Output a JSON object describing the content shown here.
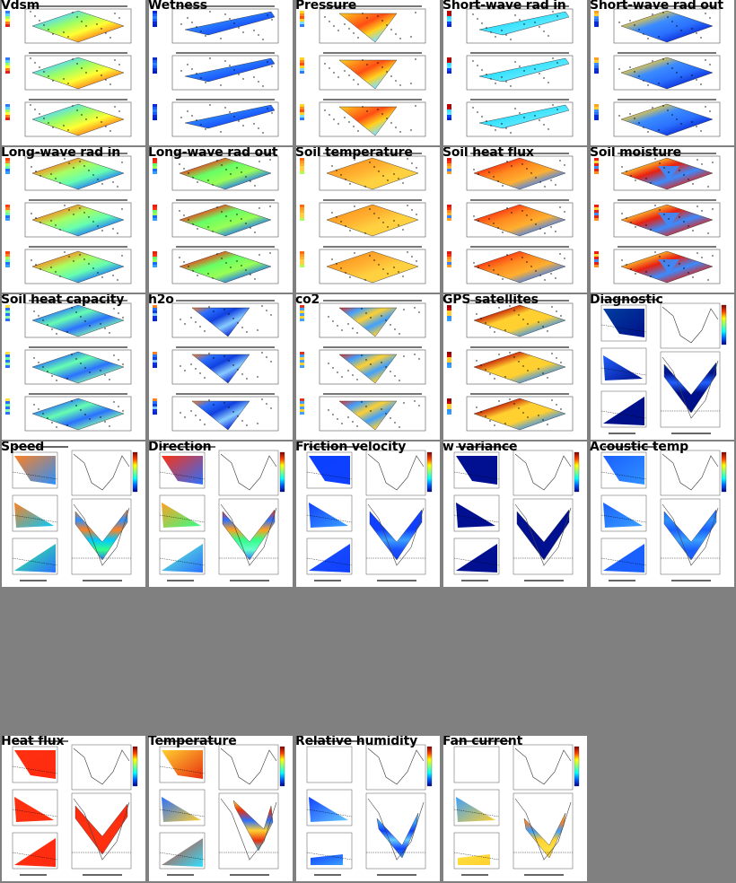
{
  "tiles": [
    {
      "label": "Vdsm",
      "style": "map",
      "palette": [
        "#2f7bff",
        "#55d7ff",
        "#99ff66",
        "#ffff33",
        "#ff7a1a",
        "#e0221b"
      ]
    },
    {
      "label": "Wetness",
      "style": "map-strip",
      "palette": [
        "#0a2bcf",
        "#1c5bff",
        "#2a80ff",
        "#1c5bff",
        "#0a2bcf",
        "#0020c0"
      ]
    },
    {
      "label": "Pressure",
      "style": "map-tri",
      "palette": [
        "#ffd21e",
        "#ff8b1a",
        "#ff4e14",
        "#ffd21e",
        "#7fe0ff",
        "#2f7bff"
      ]
    },
    {
      "label": "Short-wave rad in",
      "style": "map-strip",
      "palette": [
        "#b00000",
        "#c00000",
        "#33e0ff",
        "#55e8ff",
        "#1040ff",
        "#0a28c8"
      ]
    },
    {
      "label": "Short-wave rad out",
      "style": "map",
      "palette": [
        "#ffa020",
        "#ffd02a",
        "#3b8cff",
        "#2a70ff",
        "#0a2bd8",
        "#0a2bd0"
      ]
    },
    {
      "label": "Long-wave rad in",
      "style": "map",
      "palette": [
        "#ff4010",
        "#ff8020",
        "#a8ff60",
        "#66ffb0",
        "#1e70ff",
        "#3aa0ff"
      ]
    },
    {
      "label": "Long-wave rad out",
      "style": "map",
      "palette": [
        "#e82010",
        "#ff3010",
        "#66ff66",
        "#99ff55",
        "#1a6cff",
        "#36a0ff"
      ]
    },
    {
      "label": "Soil temperature",
      "style": "map",
      "palette": [
        "#ff6a10",
        "#ff9a20",
        "#ffb030",
        "#ffd040",
        "#ffd040",
        "#a8ff55"
      ]
    },
    {
      "label": "Soil heat flux",
      "style": "map",
      "palette": [
        "#e01810",
        "#ff3010",
        "#ff8a20",
        "#ffb030",
        "#3a80ff",
        "#ffa020"
      ]
    },
    {
      "label": "Soil moisture",
      "style": "map-hole",
      "palette": [
        "#f01a10",
        "#ffd030",
        "#e82010",
        "#3a8cff",
        "#e82010",
        "#ff9020"
      ]
    },
    {
      "label": "Soil heat capacity",
      "style": "map",
      "palette": [
        "#ffe040",
        "#2a70ff",
        "#66ffb0",
        "#2a70ff",
        "#88ffaa",
        "#2a70ff"
      ]
    },
    {
      "label": "h2o",
      "style": "map-tri",
      "palette": [
        "#ff8020",
        "#2a70ff",
        "#1040e0",
        "#88ccff",
        "#1030e0",
        "#0a28d0"
      ]
    },
    {
      "label": "co2",
      "style": "map-tri",
      "palette": [
        "#e03020",
        "#40a0ff",
        "#ffd030",
        "#40a0ff",
        "#ffd030",
        "#40a0ff"
      ]
    },
    {
      "label": "GPS satellites",
      "style": "map",
      "palette": [
        "#900000",
        "#c00000",
        "#ffd030",
        "#ffd030",
        "#2f90ff",
        "#3aa0ff"
      ]
    },
    {
      "label": "Diagnostic",
      "style": "transect",
      "palette": [
        "#003f9f",
        "#00108a",
        "#2060ff",
        "#00108a",
        "#00108a",
        "#00108a"
      ]
    },
    {
      "label": "Speed",
      "style": "transect",
      "palette": [
        "#ff8020",
        "#2a90ff",
        "#ff8020",
        "#00c8ff",
        "#33ff88",
        "#2a70ff"
      ]
    },
    {
      "label": "Direction",
      "style": "transect",
      "palette": [
        "#ff3010",
        "#2a70ff",
        "#ffa020",
        "#33ff88",
        "#66ffcc",
        "#2a70ff"
      ]
    },
    {
      "label": "Friction velocity",
      "style": "transect",
      "palette": [
        "#0a40ff",
        "#1040ff",
        "#1040ff",
        "#3aa0ff",
        "#1a50ff",
        "#1040ff"
      ]
    },
    {
      "label": "w variance",
      "style": "transect",
      "palette": [
        "#001090",
        "#001090",
        "#001090",
        "#001090",
        "#001090",
        "#001090"
      ]
    },
    {
      "label": "Acoustic temp",
      "style": "transect",
      "palette": [
        "#1a60ff",
        "#3090ff",
        "#1a60ff",
        "#3aa0ff",
        "#1a60ff",
        "#1a60ff"
      ]
    },
    {
      "label": "",
      "style": "empty",
      "palette": []
    },
    {
      "label": "",
      "style": "empty",
      "palette": []
    },
    {
      "label": "",
      "style": "empty",
      "palette": []
    },
    {
      "label": "",
      "style": "empty",
      "palette": []
    },
    {
      "label": "",
      "style": "empty",
      "palette": []
    },
    {
      "label": "Heat flux",
      "style": "transect",
      "palette": [
        "#ff3010",
        "#ff2a10",
        "#ff3010",
        "#ff3010",
        "#ff3010",
        "#ff2a10"
      ]
    },
    {
      "label": "Temperature",
      "style": "transect-hi",
      "palette": [
        "#ffd030",
        "#e83010",
        "#2a70ff",
        "#ffd030",
        "#e83010",
        "#30e0ff"
      ]
    },
    {
      "label": "Relative humidity",
      "style": "transect-lo",
      "palette": [
        "#3aa0ff",
        "#3aa0ff",
        "#1040ff",
        "#66ccff",
        "#1040ff",
        "#3aa0ff"
      ]
    },
    {
      "label": "Fan current",
      "style": "transect-lo",
      "palette": [
        "#ffb030",
        "#ff8020",
        "#3aa0ff",
        "#ffd030",
        "#ffe040",
        "#ffd030"
      ]
    },
    {
      "label": "",
      "style": "empty",
      "palette": []
    }
  ]
}
